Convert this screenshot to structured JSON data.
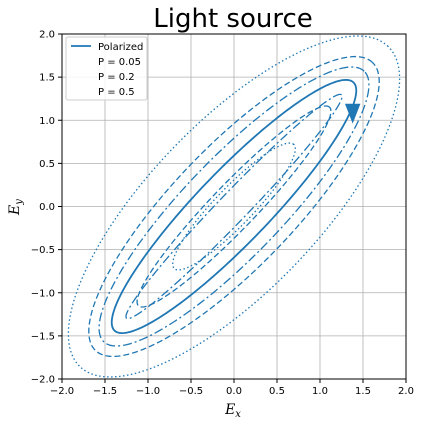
{
  "chart_data": {
    "type": "line",
    "title": "Light source",
    "xlabel": "E",
    "xlabel_sub": "x",
    "ylabel": "E",
    "ylabel_sub": "y",
    "xlim": [
      -2.0,
      2.0
    ],
    "ylim": [
      -2.0,
      2.0
    ],
    "xticks": [
      -2.0,
      -1.5,
      -1.0,
      -0.5,
      0.0,
      0.5,
      1.0,
      1.5,
      2.0
    ],
    "yticks": [
      -2.0,
      -1.5,
      -1.0,
      -0.5,
      0.0,
      0.5,
      1.0,
      1.5,
      2.0
    ],
    "xtick_labels": [
      "−2.0",
      "−1.5",
      "−1.0",
      "−0.5",
      "0.0",
      "0.5",
      "1.0",
      "1.5",
      "2.0"
    ],
    "ytick_labels": [
      "−2.0",
      "−1.5",
      "−1.0",
      "−0.5",
      "0.0",
      "0.5",
      "1.0",
      "1.5",
      "2.0"
    ],
    "grid": true,
    "legend_position": "upper-left",
    "color": "#1f77b4",
    "series": [
      {
        "name": "Polarized",
        "style": "solid",
        "ellipse": {
          "cx": 0.0,
          "cy": 0.0,
          "a": 2.0,
          "b": 0.42,
          "angle_deg": 46.0
        },
        "arrow_at": [
          1.38,
          1.0
        ]
      },
      {
        "name": "P = 0.05",
        "style": "dashed",
        "outer": {
          "cx": 0.0,
          "cy": 0.0,
          "a": 2.32,
          "b": 0.7,
          "angle_deg": 46.0
        },
        "inner": {
          "cx": 0.0,
          "cy": 0.0,
          "a": 1.6,
          "b": 0.26,
          "angle_deg": 46.0
        }
      },
      {
        "name": "P = 0.2",
        "style": "dashdot",
        "outer": {
          "cx": 0.0,
          "cy": 0.0,
          "a": 2.18,
          "b": 0.57,
          "angle_deg": 46.0
        },
        "inner": {
          "cx": 0.0,
          "cy": 0.0,
          "a": 1.8,
          "b": 0.17,
          "angle_deg": 46.0
        }
      },
      {
        "name": "P = 0.5",
        "style": "dotted",
        "outer": {
          "cx": 0.0,
          "cy": 0.0,
          "a": 2.58,
          "b": 0.98,
          "angle_deg": 46.0
        },
        "inner": {
          "cx": 0.0,
          "cy": 0.0,
          "a": 1.0,
          "b": 0.22,
          "angle_deg": 46.0
        }
      }
    ]
  }
}
